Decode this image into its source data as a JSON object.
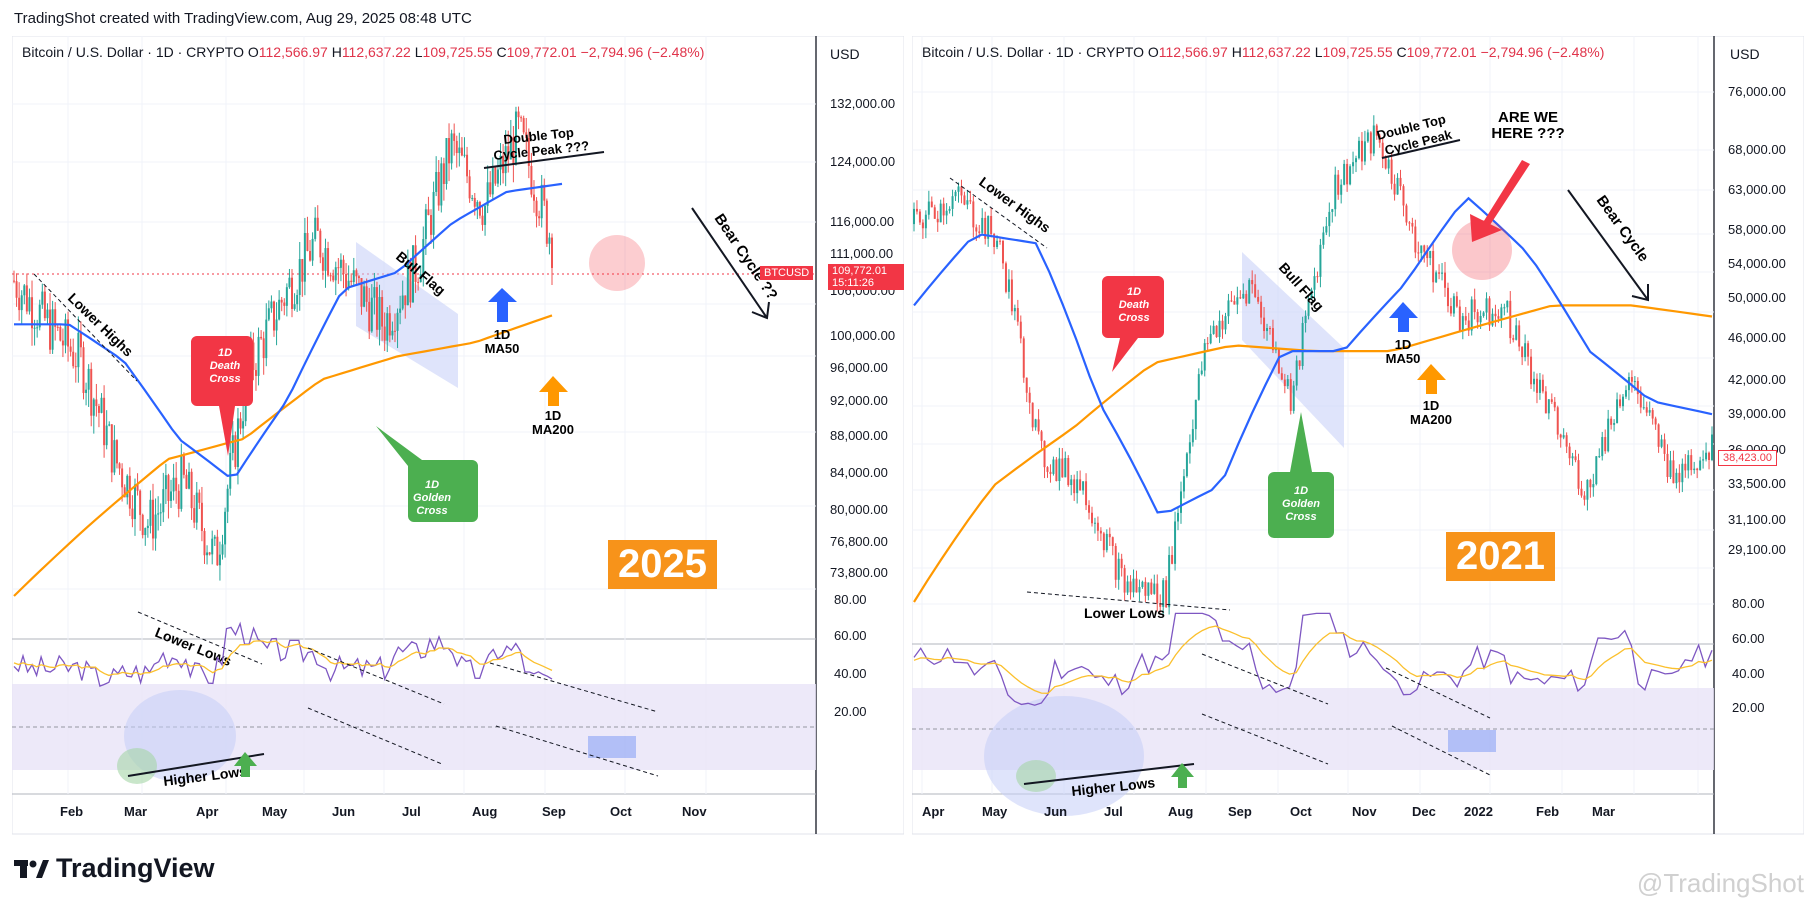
{
  "header": {
    "title": "TradingShot created with TradingView.com, Aug 29, 2025 08:48 UTC"
  },
  "footer": {
    "logo_text": "TradingView",
    "watermark": "@TradingShot"
  },
  "colors": {
    "up": "#26a69a",
    "down": "#ef5350",
    "ma50": "#2962ff",
    "ma200": "#ff9800",
    "rsi": "#7e57c2",
    "rsi_ma": "#fbc02d",
    "red_box": "#f23645",
    "green_box": "#4caf50",
    "year_box": "#f7931a"
  },
  "charts": [
    {
      "legend": {
        "symbol": "Bitcoin / U.S. Dollar · 1D · CRYPTO",
        "open_label": "O",
        "open": "112,566.97",
        "high_label": "H",
        "high": "112,637.22",
        "low_label": "L",
        "low": "109,725.55",
        "close_label": "C",
        "close": "109,772.01",
        "change": "−2,794.96 (−2.48%)"
      },
      "currency": "USD",
      "year_label": "2025",
      "price_tag": {
        "symbol": "BTCUSD",
        "price": "109,772.01",
        "countdown": "15:11:26"
      },
      "annotations": {
        "lower_highs": "Lower Highs",
        "lower_lows": "Lower Lows",
        "bull_flag": "Bull Flag",
        "double_top_1": "Double Top",
        "double_top_2": "Cycle Peak ???",
        "bear_cycle": "Bear Cycle ??",
        "death_cross": [
          "1D",
          "Death",
          "Cross"
        ],
        "golden_cross": [
          "1D",
          "Golden",
          "Cross"
        ],
        "ma50": [
          "1D",
          "MA50"
        ],
        "ma200": [
          "1D",
          "MA200"
        ],
        "higher_lows": "Higher Lows"
      },
      "price_axis": [
        "132,000.00",
        "124,000.00",
        "116,000.00",
        "111,000.00",
        "106,000.00",
        "100,000.00",
        "96,000.00",
        "92,000.00",
        "88,000.00",
        "84,000.00",
        "80,000.00",
        "76,800.00",
        "73,800.00"
      ],
      "rsi_axis": [
        "80.00",
        "60.00",
        "40.00",
        "20.00"
      ],
      "time_axis": [
        "Feb",
        "Mar",
        "Apr",
        "May",
        "Jun",
        "Jul",
        "Aug",
        "Sep",
        "Oct",
        "Nov"
      ]
    },
    {
      "legend": {
        "symbol": "Bitcoin / U.S. Dollar · 1D · CRYPTO",
        "open_label": "O",
        "open": "112,566.97",
        "high_label": "H",
        "high": "112,637.22",
        "low_label": "L",
        "low": "109,725.55",
        "close_label": "C",
        "close": "109,772.01",
        "change": "−2,794.96 (−2.48%)"
      },
      "currency": "USD",
      "year_label": "2021",
      "price_tag": {
        "price": "38,423.00"
      },
      "annotations": {
        "lower_highs": "Lower Highs",
        "lower_lows": "Lower Lows",
        "bull_flag": "Bull Flag",
        "double_top_1": "Double Top",
        "double_top_2": "Cycle Peak",
        "bear_cycle": "Bear Cycle",
        "are_we_1": "ARE WE",
        "are_we_2": "HERE ???",
        "death_cross": [
          "1D",
          "Death",
          "Cross"
        ],
        "golden_cross": [
          "1D",
          "Golden",
          "Cross"
        ],
        "ma50": [
          "1D",
          "MA50"
        ],
        "ma200": [
          "1D",
          "MA200"
        ],
        "higher_lows": "Higher Lows"
      },
      "price_axis": [
        "76,000.00",
        "68,000.00",
        "63,000.00",
        "58,000.00",
        "54,000.00",
        "50,000.00",
        "46,000.00",
        "42,000.00",
        "39,000.00",
        "36,000.00",
        "33,500.00",
        "31,100.00",
        "29,100.00"
      ],
      "rsi_axis": [
        "80.00",
        "60.00",
        "40.00",
        "20.00"
      ],
      "time_axis": [
        "Apr",
        "May",
        "Jun",
        "Jul",
        "Aug",
        "Sep",
        "Oct",
        "Nov",
        "Dec",
        "2022",
        "Feb",
        "Mar"
      ]
    }
  ],
  "chart_data": [
    {
      "type": "line",
      "title": "Bitcoin / U.S. Dollar · 1D · CRYPTO",
      "x_unit": "2025",
      "series": [
        {
          "name": "",
          "x": [
            "Jan 15",
            "Feb 1",
            "Feb 15",
            "Mar 1",
            "Mar 10",
            "Apr 1",
            "Apr 8",
            "Apr 25",
            "May 10",
            "May 22",
            "Jun 5",
            "Jun 22",
            "Jul 1",
            "Jul 14",
            "Aug 1",
            "Aug 14",
            "Aug 29"
          ],
          "values": [
            105000,
            100000,
            96000,
            86000,
            80000,
            84000,
            76800,
            95000,
            103000,
            110000,
            105000,
            100000,
            107000,
            122000,
            114000,
            124000,
            109772
          ]
        },
        {
          "name": "MA50",
          "x": [
            "Jan 15",
            "Feb 15",
            "Mar 1",
            "Mar 25",
            "Apr 15",
            "May 10",
            "Jun 1",
            "Jul 1",
            "Jul 20",
            "Aug 10",
            "Aug 29"
          ],
          "values": [
            100000,
            100000,
            96000,
            88000,
            84000,
            92000,
            104000,
            106000,
            112000,
            116000,
            117000
          ]
        },
        {
          "name": "MA200",
          "x": [
            "Jan 15",
            "Feb 15",
            "Mar 25",
            "Apr 20",
            "May 20",
            "Jun 20",
            "Jul 20",
            "Aug 29"
          ],
          "values": [
            73800,
            80000,
            86000,
            88000,
            94000,
            96500,
            98000,
            101000
          ]
        }
      ],
      "ylim": [
        73800,
        132000
      ]
    },
    {
      "type": "line",
      "title": "Bitcoin / U.S. Dollar · 1D · CRYPTO",
      "x_unit": "2021-2022",
      "series": [
        {
          "name": "",
          "x": [
            "Apr 1",
            "Apr 15",
            "May 1",
            "May 20",
            "Jun 1",
            "Jun 22",
            "Jul 20",
            "Aug 20",
            "Sep 7",
            "Sep 25",
            "Oct 20",
            "Nov 10",
            "Nov 25",
            "Dec 5",
            "Dec 25",
            "Jan 10",
            "Jan 25",
            "Feb 10",
            "Feb 25",
            "Mar 5"
          ],
          "values": [
            58000,
            61000,
            56000,
            38000,
            36000,
            30000,
            29500,
            47000,
            52000,
            42000,
            62000,
            68000,
            56000,
            49000,
            50000,
            42000,
            35500,
            44000,
            37000,
            38423
          ]
        },
        {
          "name": "MA50",
          "x": [
            "Apr 1",
            "May 1",
            "May 20",
            "Jun 15",
            "Jul 10",
            "Aug 1",
            "Sep 1",
            "Oct 1",
            "Oct 25",
            "Nov 20",
            "Dec 20",
            "Jan 20",
            "Feb 20",
            "Mar 5"
          ],
          "values": [
            50000,
            57000,
            56000,
            42000,
            34000,
            36000,
            46000,
            46000,
            52000,
            61000,
            55000,
            46000,
            42000,
            41000
          ]
        },
        {
          "name": "MA200",
          "x": [
            "Apr 1",
            "May 15",
            "Jun 15",
            "Aug 1",
            "Sep 1",
            "Oct 1",
            "Nov 1",
            "Dec 1",
            "Jan 1",
            "Feb 1",
            "Mar 5"
          ],
          "values": [
            29100,
            36000,
            40000,
            45000,
            46500,
            46000,
            46000,
            48000,
            50000,
            50000,
            49000
          ]
        }
      ],
      "ylim": [
        29100,
        76000
      ]
    }
  ]
}
